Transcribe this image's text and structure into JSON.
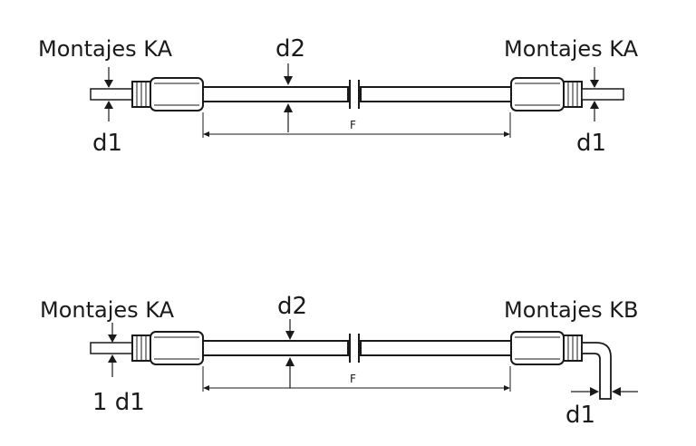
{
  "top": {
    "left_fitting": "Montajes KA",
    "right_fitting": "Montajes KA",
    "d2": "d2",
    "d1_left": "d1",
    "d1_right": "d1",
    "f": "F"
  },
  "bottom": {
    "left_fitting": "Montajes KA",
    "right_fitting": "Montajes KB",
    "d2": "d2",
    "d1_left": "1 d1",
    "d1_right": "d1",
    "f": "F"
  },
  "colors": {
    "line": "#1a1a1a",
    "background": "#ffffff"
  }
}
